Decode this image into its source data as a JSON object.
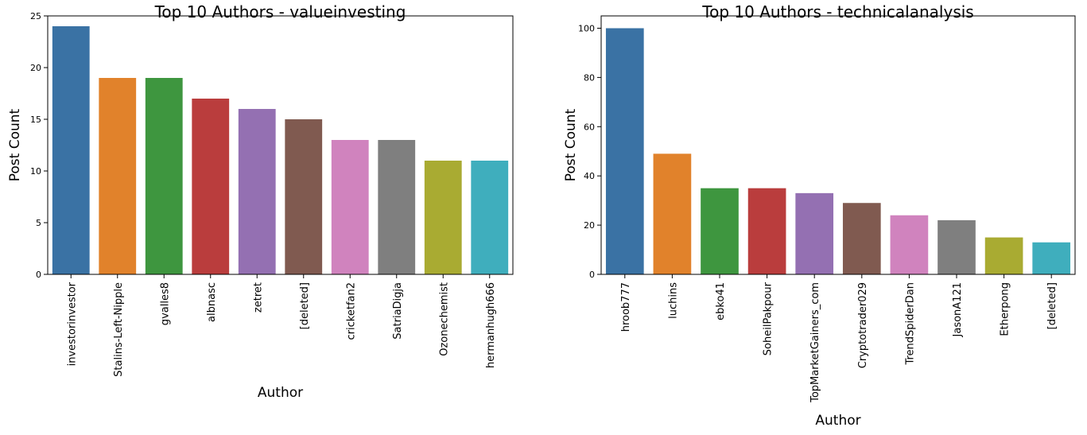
{
  "chart_data": [
    {
      "type": "bar",
      "title": "Top 10 Authors - valueinvesting",
      "xlabel": "Author",
      "ylabel": "Post Count",
      "ylim": [
        0,
        25
      ],
      "yticks": [
        0,
        5,
        10,
        15,
        20,
        25
      ],
      "grid": false,
      "categories": [
        "investorinvestor",
        "Stalins-Left-Nipple",
        "gvalles8",
        "albnasc",
        "zetret",
        "[deleted]",
        "cricketfan2",
        "SatriaDigja",
        "Ozonechemist",
        "hermanhugh666"
      ],
      "values": [
        24,
        19,
        19,
        17,
        16,
        15,
        13,
        13,
        11,
        11
      ],
      "colors": [
        "#3a72a4",
        "#e1822b",
        "#3e963f",
        "#ba3d3d",
        "#9470b2",
        "#805a50",
        "#d083be",
        "#7f7f7f",
        "#a9ab32",
        "#3faebd"
      ]
    },
    {
      "type": "bar",
      "title": "Top 10 Authors - technicalanalysis",
      "xlabel": "Author",
      "ylabel": "Post Count",
      "ylim": [
        0,
        105
      ],
      "yticks": [
        0,
        20,
        40,
        60,
        80,
        100
      ],
      "grid": false,
      "categories": [
        "hroob777",
        "luchins",
        "ebko41",
        "SoheilPakpour",
        "TopMarketGainers_com",
        "Cryptotrader029",
        "TrendSpiderDan",
        "JasonA121",
        "Etherpong",
        "[deleted]"
      ],
      "values": [
        100,
        49,
        35,
        35,
        33,
        29,
        24,
        22,
        15,
        13
      ],
      "colors": [
        "#3a72a4",
        "#e1822b",
        "#3e963f",
        "#ba3d3d",
        "#9470b2",
        "#805a50",
        "#d083be",
        "#7f7f7f",
        "#a9ab32",
        "#3faebd"
      ]
    }
  ]
}
